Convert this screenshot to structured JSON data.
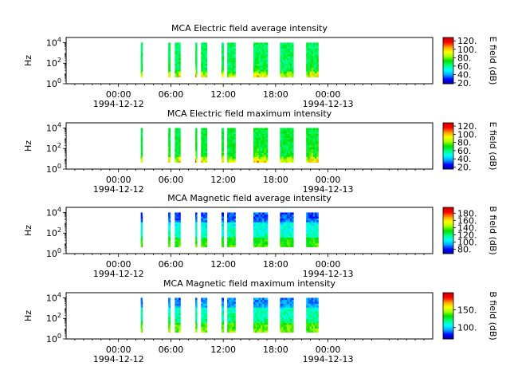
{
  "chart_data": [
    {
      "type": "heatmap",
      "title": "MCA  Electric field average intensity",
      "ylabel": "Hz",
      "colorbar_label": "E field (dB)",
      "colorbar_range": [
        18,
        128
      ],
      "colorbar_ticks": [
        "20.",
        "40.",
        "60.",
        "80.",
        "100.",
        "120."
      ],
      "colorbar_tick_values": [
        20,
        40,
        60,
        80,
        100,
        120
      ],
      "ylim_log10": [
        0,
        4.5
      ],
      "y_ticks": [
        {
          "base": "10",
          "exp": "0",
          "value": 0
        },
        {
          "base": "10",
          "exp": "2",
          "value": 2
        },
        {
          "base": "10",
          "exp": "4",
          "value": 4
        }
      ],
      "mode": "e_avg"
    },
    {
      "type": "heatmap",
      "title": "MCA  Electric field maximum intensity",
      "ylabel": "Hz",
      "colorbar_label": "E field (dB)",
      "colorbar_range": [
        15,
        128
      ],
      "colorbar_ticks": [
        "20.",
        "40.",
        "60.",
        "80.",
        "100.",
        "120."
      ],
      "colorbar_tick_values": [
        20,
        40,
        60,
        80,
        100,
        120
      ],
      "ylim_log10": [
        0,
        4.5
      ],
      "y_ticks": [
        {
          "base": "10",
          "exp": "0",
          "value": 0
        },
        {
          "base": "10",
          "exp": "2",
          "value": 2
        },
        {
          "base": "10",
          "exp": "4",
          "value": 4
        }
      ],
      "mode": "e_max"
    },
    {
      "type": "heatmap",
      "title": "MCA  Magnetic field average intensity",
      "ylabel": "Hz",
      "colorbar_label": "B field (dB)",
      "colorbar_range": [
        68,
        196
      ],
      "colorbar_ticks": [
        "80.",
        "100.",
        "120.",
        "140.",
        "160.",
        "180."
      ],
      "colorbar_tick_values": [
        80,
        100,
        120,
        140,
        160,
        180
      ],
      "ylim_log10": [
        0,
        4.5
      ],
      "y_ticks": [
        {
          "base": "10",
          "exp": "0",
          "value": 0
        },
        {
          "base": "10",
          "exp": "2",
          "value": 2
        },
        {
          "base": "10",
          "exp": "4",
          "value": 4
        }
      ],
      "mode": "b_avg"
    },
    {
      "type": "heatmap",
      "title": "MCA  Magnetic field maximum intensity",
      "ylabel": "Hz",
      "colorbar_label": "B field (dB)",
      "colorbar_range": [
        68,
        198
      ],
      "colorbar_ticks": [
        "100.",
        "150."
      ],
      "colorbar_tick_values": [
        100,
        150
      ],
      "ylim_log10": [
        0,
        4.5
      ],
      "y_ticks": [
        {
          "base": "10",
          "exp": "0",
          "value": 0
        },
        {
          "base": "10",
          "exp": "2",
          "value": 2
        },
        {
          "base": "10",
          "exp": "4",
          "value": 4
        }
      ],
      "mode": "b_max"
    }
  ],
  "shared": {
    "x_range_hours": [
      -6,
      36
    ],
    "x_ticks": [
      {
        "hour": 0,
        "label": "00:00",
        "date": "1994-12-12"
      },
      {
        "hour": 6,
        "label": "06:00",
        "date": ""
      },
      {
        "hour": 12,
        "label": "12:00",
        "date": ""
      },
      {
        "hour": 18,
        "label": "18:00",
        "date": ""
      },
      {
        "hour": 24,
        "label": "00:00",
        "date": "1994-12-13"
      }
    ],
    "data_intervals_hours": [
      [
        2.55,
        2.75
      ],
      [
        5.7,
        5.95
      ],
      [
        6.45,
        7.1
      ],
      [
        8.8,
        9.0
      ],
      [
        9.45,
        10.15
      ],
      [
        11.8,
        12.05
      ],
      [
        12.45,
        13.4
      ],
      [
        15.45,
        17.1
      ],
      [
        18.5,
        20.05
      ],
      [
        21.5,
        22.9
      ]
    ],
    "colormap": [
      "#0000a0",
      "#0000ff",
      "#00aaff",
      "#00ffff",
      "#00ff80",
      "#00e000",
      "#aaff00",
      "#ffff00",
      "#ff9900",
      "#ff0000",
      "#c80000"
    ]
  }
}
